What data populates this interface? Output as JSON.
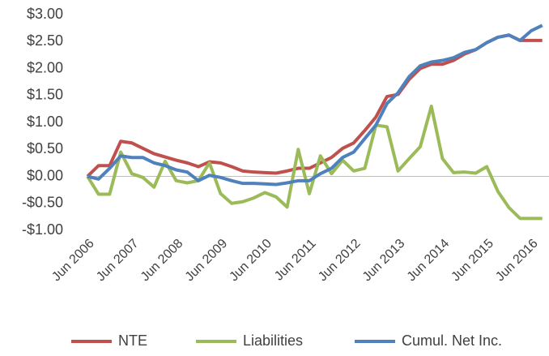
{
  "chart_data": {
    "type": "line",
    "categories": [
      "Jun 2006",
      null,
      null,
      null,
      "Jun 2007",
      null,
      null,
      null,
      "Jun 2008",
      null,
      null,
      null,
      "Jun 2009",
      null,
      null,
      null,
      "Jun 2010",
      null,
      null,
      null,
      "Jun 2011",
      null,
      null,
      null,
      "Jun 2012",
      null,
      null,
      null,
      "Jun 2013",
      null,
      null,
      null,
      "Jun 2014",
      null,
      null,
      null,
      "Jun 2015",
      null,
      null,
      null,
      "Jun 2016",
      null
    ],
    "series": [
      {
        "name": "NTE",
        "color": "#c0504d",
        "values": [
          0,
          0.2,
          0.2,
          0.65,
          0.62,
          0.52,
          0.42,
          0.36,
          0.3,
          0.25,
          0.18,
          0.27,
          0.25,
          0.18,
          0.1,
          0.08,
          0.07,
          0.06,
          0.1,
          0.15,
          0.15,
          0.25,
          0.35,
          0.52,
          0.62,
          0.85,
          1.1,
          1.48,
          1.52,
          1.8,
          2.0,
          2.08,
          2.08,
          2.15,
          2.27,
          2.35,
          2.48,
          2.58,
          2.62,
          2.52,
          2.52,
          2.52
        ]
      },
      {
        "name": "Liabilities",
        "color": "#9bbb59",
        "values": [
          0,
          -0.33,
          -0.33,
          0.45,
          0.05,
          -0.02,
          -0.2,
          0.28,
          -0.08,
          -0.12,
          -0.08,
          0.25,
          -0.32,
          -0.5,
          -0.47,
          -0.4,
          -0.3,
          -0.38,
          -0.57,
          0.5,
          -0.32,
          0.38,
          0.05,
          0.3,
          0.1,
          0.15,
          0.95,
          0.92,
          0.1,
          0.33,
          0.55,
          1.3,
          0.33,
          0.07,
          0.08,
          0.06,
          0.18,
          -0.28,
          -0.58,
          -0.78,
          -0.78,
          -0.78
        ]
      },
      {
        "name": "Cumul. Net Inc.",
        "color": "#4f81bd",
        "values": [
          0,
          -0.05,
          0.15,
          0.38,
          0.35,
          0.35,
          0.25,
          0.2,
          0.12,
          0.08,
          -0.08,
          0.02,
          -0.02,
          -0.08,
          -0.13,
          -0.13,
          -0.14,
          -0.15,
          -0.12,
          -0.08,
          -0.08,
          0.05,
          0.15,
          0.35,
          0.45,
          0.7,
          0.95,
          1.35,
          1.55,
          1.85,
          2.05,
          2.12,
          2.15,
          2.2,
          2.3,
          2.35,
          2.48,
          2.58,
          2.62,
          2.52,
          2.7,
          2.8
        ]
      }
    ],
    "ylim": [
      -1,
      3
    ],
    "yticks": [
      {
        "value": -1,
        "label": "-$1.00"
      },
      {
        "value": -0.5,
        "label": "-$0.50"
      },
      {
        "value": 0,
        "label": "$0.00"
      },
      {
        "value": 0.5,
        "label": "$0.50"
      },
      {
        "value": 1,
        "label": "$1.00"
      },
      {
        "value": 1.5,
        "label": "$1.50"
      },
      {
        "value": 2,
        "label": "$2.00"
      },
      {
        "value": 2.5,
        "label": "$2.50"
      },
      {
        "value": 3,
        "label": "$3.00"
      }
    ],
    "legend": "bottom"
  }
}
